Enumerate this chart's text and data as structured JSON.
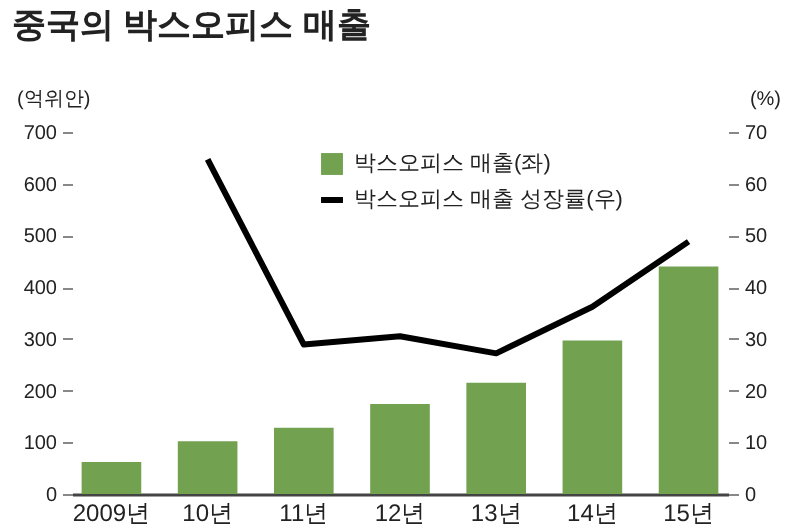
{
  "chart_data": {
    "type": "bar",
    "title": "중국의 박스오피스 매출",
    "ylabel": "(억위안)",
    "y2label": "(%)",
    "categories": [
      "2009년",
      "10년",
      "11년",
      "12년",
      "13년",
      "14년",
      "15년"
    ],
    "series": [
      {
        "name": "박스오피스 매출(좌)",
        "color": "#72a250",
        "values": [
          62,
          102,
          128,
          174,
          215,
          297,
          440
        ]
      },
      {
        "name": "박스오피스 매출 성장률(우)",
        "type": "line",
        "axis": "y2",
        "color": "#000000",
        "values": [
          null,
          64.7,
          28.9,
          30.5,
          27.2,
          36.2,
          48.8
        ]
      }
    ],
    "ylim": [
      0,
      700
    ],
    "yticks": [
      0,
      100,
      200,
      300,
      400,
      500,
      600,
      700
    ],
    "y2lim": [
      0,
      70
    ],
    "y2ticks": [
      0,
      10,
      20,
      30,
      40,
      50,
      60,
      70
    ],
    "legend": "top right",
    "marker": "none",
    "line_style": "solid"
  }
}
